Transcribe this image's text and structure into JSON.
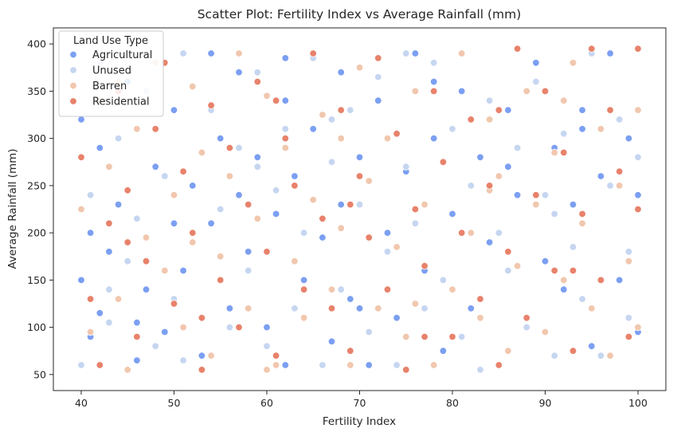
{
  "chart_data": {
    "type": "scatter",
    "title": "Scatter Plot: Fertility Index vs Average Rainfall (mm)",
    "xlabel": "Fertility Index",
    "ylabel": "Average Rainfall (mm)",
    "xlim": [
      37,
      103
    ],
    "ylim": [
      33,
      417
    ],
    "xticks": [
      40,
      50,
      60,
      70,
      80,
      90,
      100
    ],
    "yticks": [
      50,
      100,
      150,
      200,
      250,
      300,
      350,
      400
    ],
    "grid": false,
    "legend": {
      "title": "Land Use Type",
      "placement": "top-left",
      "entries": [
        "Agricultural",
        "Unused",
        "Barren",
        "Residential"
      ]
    },
    "series": [
      {
        "name": "Agricultural",
        "color": "#7b9ff2",
        "x": [
          40,
          40,
          41,
          41,
          42,
          42,
          43,
          44,
          45,
          46,
          47,
          48,
          49,
          50,
          50,
          51,
          52,
          53,
          54,
          55,
          56,
          57,
          57,
          58,
          59,
          60,
          61,
          62,
          62,
          63,
          64,
          65,
          66,
          67,
          68,
          68,
          69,
          70,
          71,
          72,
          73,
          74,
          75,
          76,
          77,
          78,
          79,
          80,
          81,
          82,
          83,
          84,
          85,
          86,
          87,
          88,
          89,
          90,
          91,
          92,
          93,
          94,
          95,
          96,
          97,
          98,
          99,
          100,
          100,
          46,
          54,
          62,
          70,
          78,
          86,
          94
        ],
        "y": [
          320,
          150,
          200,
          90,
          290,
          115,
          180,
          230,
          360,
          65,
          140,
          270,
          95,
          210,
          330,
          160,
          250,
          70,
          390,
          300,
          120,
          240,
          370,
          180,
          280,
          100,
          220,
          340,
          60,
          260,
          150,
          310,
          195,
          85,
          370,
          230,
          130,
          280,
          60,
          340,
          200,
          110,
          265,
          390,
          160,
          300,
          75,
          220,
          350,
          120,
          280,
          190,
          60,
          330,
          240,
          100,
          380,
          170,
          290,
          140,
          230,
          330,
          80,
          260,
          390,
          150,
          300,
          240,
          95,
          105,
          210,
          385,
          120,
          360,
          270,
          310
        ]
      },
      {
        "name": "Unused",
        "color": "#c6d6f1",
        "x": [
          40,
          41,
          42,
          43,
          44,
          45,
          46,
          47,
          48,
          49,
          50,
          51,
          52,
          53,
          54,
          55,
          56,
          57,
          58,
          59,
          60,
          61,
          62,
          63,
          64,
          65,
          66,
          67,
          68,
          69,
          70,
          71,
          72,
          73,
          74,
          75,
          76,
          77,
          78,
          79,
          80,
          81,
          82,
          83,
          84,
          85,
          86,
          87,
          88,
          89,
          90,
          91,
          92,
          93,
          94,
          95,
          96,
          97,
          98,
          99,
          100,
          43,
          51,
          59,
          67,
          75,
          83,
          91,
          99
        ],
        "y": [
          60,
          240,
          380,
          105,
          300,
          170,
          215,
          350,
          80,
          260,
          130,
          390,
          190,
          55,
          330,
          225,
          100,
          290,
          160,
          370,
          80,
          245,
          310,
          120,
          200,
          385,
          60,
          275,
          140,
          330,
          230,
          95,
          365,
          180,
          60,
          270,
          210,
          120,
          380,
          150,
          310,
          90,
          250,
          55,
          340,
          200,
          160,
          290,
          100,
          360,
          240,
          70,
          305,
          185,
          130,
          390,
          70,
          250,
          320,
          110,
          280,
          140,
          65,
          270,
          320,
          390,
          55,
          220,
          180
        ]
      },
      {
        "name": "Barren",
        "color": "#f1c7ae",
        "x": [
          40,
          41,
          42,
          43,
          44,
          45,
          46,
          47,
          48,
          49,
          50,
          51,
          52,
          53,
          54,
          55,
          56,
          57,
          58,
          59,
          60,
          61,
          62,
          63,
          64,
          65,
          66,
          67,
          68,
          69,
          70,
          71,
          72,
          73,
          74,
          75,
          76,
          77,
          78,
          79,
          80,
          81,
          82,
          83,
          84,
          85,
          86,
          87,
          88,
          89,
          90,
          91,
          92,
          93,
          94,
          95,
          96,
          97,
          98,
          99,
          100,
          44,
          52,
          60,
          68,
          76,
          84,
          92,
          100
        ],
        "y": [
          225,
          95,
          340,
          270,
          130,
          55,
          310,
          195,
          380,
          160,
          240,
          100,
          355,
          285,
          70,
          175,
          260,
          390,
          120,
          215,
          345,
          60,
          290,
          170,
          110,
          235,
          325,
          140,
          205,
          60,
          375,
          255,
          120,
          300,
          185,
          90,
          350,
          230,
          60,
          275,
          140,
          390,
          200,
          110,
          320,
          260,
          75,
          165,
          350,
          230,
          95,
          285,
          150,
          380,
          210,
          120,
          310,
          70,
          250,
          170,
          330,
          360,
          190,
          55,
          300,
          125,
          245,
          340,
          100
        ]
      },
      {
        "name": "Residential",
        "color": "#e8826b",
        "x": [
          40,
          41,
          42,
          43,
          44,
          45,
          46,
          47,
          48,
          49,
          50,
          51,
          52,
          53,
          54,
          55,
          56,
          57,
          58,
          59,
          60,
          61,
          62,
          63,
          64,
          65,
          66,
          67,
          68,
          69,
          70,
          71,
          72,
          73,
          74,
          75,
          76,
          77,
          78,
          79,
          80,
          81,
          82,
          83,
          84,
          85,
          86,
          87,
          88,
          89,
          90,
          91,
          92,
          93,
          94,
          95,
          96,
          97,
          98,
          99,
          100,
          45,
          53,
          61,
          69,
          77,
          85,
          93,
          100
        ],
        "y": [
          280,
          130,
          60,
          210,
          350,
          245,
          90,
          170,
          310,
          380,
          125,
          265,
          200,
          55,
          335,
          150,
          290,
          100,
          230,
          360,
          180,
          70,
          300,
          250,
          140,
          390,
          215,
          120,
          330,
          75,
          260,
          195,
          385,
          140,
          305,
          55,
          225,
          165,
          350,
          275,
          90,
          200,
          320,
          130,
          250,
          60,
          180,
          395,
          110,
          240,
          350,
          160,
          285,
          75,
          220,
          395,
          150,
          330,
          265,
          90,
          225,
          190,
          110,
          340,
          230,
          90,
          330,
          160,
          395
        ]
      }
    ]
  }
}
